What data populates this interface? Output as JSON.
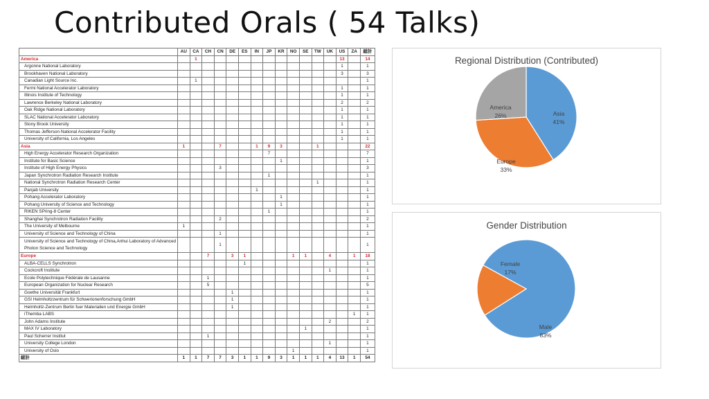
{
  "title": "Contributed Orals ( 54 Talks)",
  "table": {
    "corner": "",
    "columns": [
      "AU",
      "CA",
      "CH",
      "CN",
      "DE",
      "ES",
      "IN",
      "JP",
      "KR",
      "NO",
      "SE",
      "TW",
      "UK",
      "US",
      "ZA",
      "総計"
    ],
    "rows": [
      {
        "type": "region",
        "label": "America",
        "values": [
          "",
          "1",
          "",
          "",
          "",
          "",
          "",
          "",
          "",
          "",
          "",
          "",
          "",
          "13",
          "",
          "14"
        ]
      },
      {
        "type": "inst",
        "label": "Argonne National Laboratory",
        "values": [
          "",
          "",
          "",
          "",
          "",
          "",
          "",
          "",
          "",
          "",
          "",
          "",
          "",
          "1",
          "",
          "1"
        ]
      },
      {
        "type": "inst",
        "label": "Brookhaven National Laboratory",
        "values": [
          "",
          "",
          "",
          "",
          "",
          "",
          "",
          "",
          "",
          "",
          "",
          "",
          "",
          "3",
          "",
          "3"
        ]
      },
      {
        "type": "inst",
        "label": "Canadian Light Source Inc.",
        "values": [
          "",
          "1",
          "",
          "",
          "",
          "",
          "",
          "",
          "",
          "",
          "",
          "",
          "",
          "",
          "",
          "1"
        ]
      },
      {
        "type": "inst",
        "label": "Fermi National Accelerator Laboratory",
        "values": [
          "",
          "",
          "",
          "",
          "",
          "",
          "",
          "",
          "",
          "",
          "",
          "",
          "",
          "1",
          "",
          "1"
        ]
      },
      {
        "type": "inst",
        "label": "Illinois Institute of Technology",
        "values": [
          "",
          "",
          "",
          "",
          "",
          "",
          "",
          "",
          "",
          "",
          "",
          "",
          "",
          "1",
          "",
          "1"
        ]
      },
      {
        "type": "inst",
        "label": "Lawrence Berkeley National Laboratory",
        "values": [
          "",
          "",
          "",
          "",
          "",
          "",
          "",
          "",
          "",
          "",
          "",
          "",
          "",
          "2",
          "",
          "2"
        ]
      },
      {
        "type": "inst",
        "label": "Oak Ridge National Laboratory",
        "values": [
          "",
          "",
          "",
          "",
          "",
          "",
          "",
          "",
          "",
          "",
          "",
          "",
          "",
          "1",
          "",
          "1"
        ]
      },
      {
        "type": "inst",
        "label": "SLAC National Accelerator Laboratory",
        "values": [
          "",
          "",
          "",
          "",
          "",
          "",
          "",
          "",
          "",
          "",
          "",
          "",
          "",
          "1",
          "",
          "1"
        ]
      },
      {
        "type": "inst",
        "label": "Stony Brook University",
        "values": [
          "",
          "",
          "",
          "",
          "",
          "",
          "",
          "",
          "",
          "",
          "",
          "",
          "",
          "1",
          "",
          "1"
        ]
      },
      {
        "type": "inst",
        "label": "Thomas Jefferson National Accelerator Facility",
        "values": [
          "",
          "",
          "",
          "",
          "",
          "",
          "",
          "",
          "",
          "",
          "",
          "",
          "",
          "1",
          "",
          "1"
        ]
      },
      {
        "type": "inst",
        "label": "University of California, Los Angeles",
        "values": [
          "",
          "",
          "",
          "",
          "",
          "",
          "",
          "",
          "",
          "",
          "",
          "",
          "",
          "1",
          "",
          "1"
        ]
      },
      {
        "type": "region",
        "label": "Asia",
        "values": [
          "1",
          "",
          "",
          "7",
          "",
          "",
          "1",
          "9",
          "3",
          "",
          "",
          "1",
          "",
          "",
          "",
          "22"
        ]
      },
      {
        "type": "inst",
        "label": "High Energy Accelerator Research Organization",
        "values": [
          "",
          "",
          "",
          "",
          "",
          "",
          "",
          "7",
          "",
          "",
          "",
          "",
          "",
          "",
          "",
          "7"
        ]
      },
      {
        "type": "inst",
        "label": "Institute for Basic Science",
        "values": [
          "",
          "",
          "",
          "",
          "",
          "",
          "",
          "",
          "1",
          "",
          "",
          "",
          "",
          "",
          "",
          "1"
        ]
      },
      {
        "type": "inst",
        "label": "Institute of High Energy Physics",
        "values": [
          "",
          "",
          "",
          "3",
          "",
          "",
          "",
          "",
          "",
          "",
          "",
          "",
          "",
          "",
          "",
          "3"
        ]
      },
      {
        "type": "inst",
        "label": "Japan Synchrotron Radiation Research Institute",
        "values": [
          "",
          "",
          "",
          "",
          "",
          "",
          "",
          "1",
          "",
          "",
          "",
          "",
          "",
          "",
          "",
          "1"
        ]
      },
      {
        "type": "inst",
        "label": "National Synchrotron Radiation Research Center",
        "values": [
          "",
          "",
          "",
          "",
          "",
          "",
          "",
          "",
          "",
          "",
          "",
          "1",
          "",
          "",
          "",
          "1"
        ]
      },
      {
        "type": "inst",
        "label": "Panjab University",
        "values": [
          "",
          "",
          "",
          "",
          "",
          "",
          "1",
          "",
          "",
          "",
          "",
          "",
          "",
          "",
          "",
          "1"
        ]
      },
      {
        "type": "inst",
        "label": "Pohang Accelerator Laboratory",
        "values": [
          "",
          "",
          "",
          "",
          "",
          "",
          "",
          "",
          "1",
          "",
          "",
          "",
          "",
          "",
          "",
          "1"
        ]
      },
      {
        "type": "inst",
        "label": "Pohang University of Science and Technology",
        "values": [
          "",
          "",
          "",
          "",
          "",
          "",
          "",
          "",
          "1",
          "",
          "",
          "",
          "",
          "",
          "",
          "1"
        ]
      },
      {
        "type": "inst",
        "label": "RIKEN SPring-8 Center",
        "values": [
          "",
          "",
          "",
          "",
          "",
          "",
          "",
          "1",
          "",
          "",
          "",
          "",
          "",
          "",
          "",
          "1"
        ]
      },
      {
        "type": "inst",
        "label": "Shanghai Synchrotron Radiation Facility",
        "values": [
          "",
          "",
          "",
          "2",
          "",
          "",
          "",
          "",
          "",
          "",
          "",
          "",
          "",
          "",
          "",
          "2"
        ]
      },
      {
        "type": "inst",
        "label": "The University of Melbourne",
        "values": [
          "1",
          "",
          "",
          "",
          "",
          "",
          "",
          "",
          "",
          "",
          "",
          "",
          "",
          "",
          "",
          "1"
        ]
      },
      {
        "type": "inst",
        "label": "University of Science and Technology of China",
        "values": [
          "",
          "",
          "",
          "1",
          "",
          "",
          "",
          "",
          "",
          "",
          "",
          "",
          "",
          "",
          "",
          "1"
        ]
      },
      {
        "type": "inst",
        "tall": true,
        "label": "University of Science and Technology of China,Anhui Laboratory of Advanced Photon Science and Technology",
        "values": [
          "",
          "",
          "",
          "1",
          "",
          "",
          "",
          "",
          "",
          "",
          "",
          "",
          "",
          "",
          "",
          "1"
        ]
      },
      {
        "type": "region",
        "label": "Europe",
        "values": [
          "",
          "",
          "7",
          "",
          "3",
          "1",
          "",
          "",
          "",
          "1",
          "1",
          "",
          "4",
          "",
          "1",
          "18"
        ]
      },
      {
        "type": "inst",
        "label": "ALBA-CELLS Synchrotron",
        "values": [
          "",
          "",
          "",
          "",
          "",
          "1",
          "",
          "",
          "",
          "",
          "",
          "",
          "",
          "",
          "",
          "1"
        ]
      },
      {
        "type": "inst",
        "label": "Cockcroft Institute",
        "values": [
          "",
          "",
          "",
          "",
          "",
          "",
          "",
          "",
          "",
          "",
          "",
          "",
          "1",
          "",
          "",
          "1"
        ]
      },
      {
        "type": "inst",
        "label": "Ecole Polytechnique Fédérale de Lausanne",
        "values": [
          "",
          "",
          "1",
          "",
          "",
          "",
          "",
          "",
          "",
          "",
          "",
          "",
          "",
          "",
          "",
          "1"
        ]
      },
      {
        "type": "inst",
        "label": "European Organization for Nuclear Research",
        "values": [
          "",
          "",
          "5",
          "",
          "",
          "",
          "",
          "",
          "",
          "",
          "",
          "",
          "",
          "",
          "",
          "5"
        ]
      },
      {
        "type": "inst",
        "label": "Goethe Universität Frankfurt",
        "values": [
          "",
          "",
          "",
          "",
          "1",
          "",
          "",
          "",
          "",
          "",
          "",
          "",
          "",
          "",
          "",
          "1"
        ]
      },
      {
        "type": "inst",
        "label": "GSI Helmholtzzentrum für Schwerionenforschung GmbH",
        "values": [
          "",
          "",
          "",
          "",
          "1",
          "",
          "",
          "",
          "",
          "",
          "",
          "",
          "",
          "",
          "",
          "1"
        ]
      },
      {
        "type": "inst",
        "label": "Helmholtz-Zentrum Berlin fuer Materialien und Energie GmbH",
        "values": [
          "",
          "",
          "",
          "",
          "1",
          "",
          "",
          "",
          "",
          "",
          "",
          "",
          "",
          "",
          "",
          "1"
        ]
      },
      {
        "type": "inst",
        "label": "iThemba LABS",
        "values": [
          "",
          "",
          "",
          "",
          "",
          "",
          "",
          "",
          "",
          "",
          "",
          "",
          "",
          "",
          "1",
          "1"
        ]
      },
      {
        "type": "inst",
        "label": "John Adams Institute",
        "values": [
          "",
          "",
          "",
          "",
          "",
          "",
          "",
          "",
          "",
          "",
          "",
          "",
          "2",
          "",
          "",
          "2"
        ]
      },
      {
        "type": "inst",
        "label": "MAX IV Laboratory",
        "values": [
          "",
          "",
          "",
          "",
          "",
          "",
          "",
          "",
          "",
          "",
          "1",
          "",
          "",
          "",
          "",
          "1"
        ]
      },
      {
        "type": "inst",
        "label": "Paul Scherrer Institut",
        "values": [
          "",
          "",
          "1",
          "",
          "",
          "",
          "",
          "",
          "",
          "",
          "",
          "",
          "",
          "",
          "",
          "1"
        ]
      },
      {
        "type": "inst",
        "label": "University College London",
        "values": [
          "",
          "",
          "",
          "",
          "",
          "",
          "",
          "",
          "",
          "",
          "",
          "",
          "1",
          "",
          "",
          "1"
        ]
      },
      {
        "type": "inst",
        "label": "University of Oslo",
        "values": [
          "",
          "",
          "",
          "",
          "",
          "",
          "",
          "",
          "",
          "1",
          "",
          "",
          "",
          "",
          "",
          "1"
        ]
      },
      {
        "type": "sum",
        "label": "総計",
        "values": [
          "1",
          "1",
          "7",
          "7",
          "3",
          "1",
          "1",
          "9",
          "3",
          "1",
          "1",
          "1",
          "4",
          "13",
          "1",
          "54"
        ]
      }
    ]
  },
  "chart_data": [
    {
      "type": "pie",
      "title": "Regional Distribution (Contributed)",
      "slices": [
        {
          "label": "Asia",
          "pct_label": "41%",
          "value": 41,
          "color": "#5b9bd5"
        },
        {
          "label": "Europe",
          "pct_label": "33%",
          "value": 33,
          "color": "#ed7d31"
        },
        {
          "label": "America",
          "pct_label": "26%",
          "value": 26,
          "color": "#a5a5a5"
        }
      ]
    },
    {
      "type": "pie",
      "title": "Gender Distribution",
      "slices": [
        {
          "label": "Male",
          "pct_label": "83%",
          "value": 83,
          "color": "#5b9bd5"
        },
        {
          "label": "Female",
          "pct_label": "17%",
          "value": 17,
          "color": "#ed7d31"
        }
      ]
    }
  ]
}
